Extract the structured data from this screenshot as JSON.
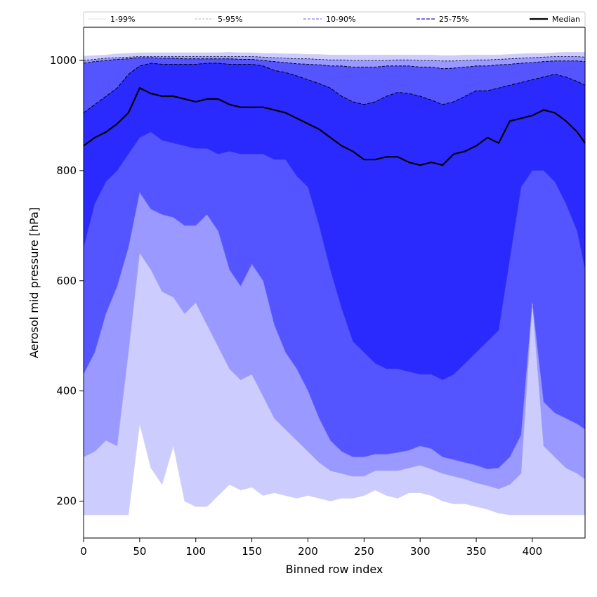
{
  "chart_data": {
    "type": "area",
    "title": "",
    "xlabel": "Binned row index",
    "ylabel": "Aerosol mid pressure [hPa]",
    "xlim": [
      0,
      447
    ],
    "ylim": [
      133,
      1060
    ],
    "xticks": [
      0,
      50,
      100,
      150,
      200,
      250,
      300,
      350,
      400
    ],
    "yticks": [
      200,
      400,
      600,
      800,
      1000
    ],
    "legend_position": "top",
    "colors": {
      "band_1_99": "#ccccff",
      "band_5_95": "#9999ff",
      "band_10_90": "#5555ff",
      "band_25_75": "#2a2aff",
      "median": "#000000",
      "line_1_99": "#d8d8e8",
      "line_5_95": "#b0b0dd",
      "line_10_90": "#8080ee",
      "line_25_75": "#4040dd"
    },
    "legend": [
      {
        "key": "p1_99",
        "label": "1-99%"
      },
      {
        "key": "p5_95",
        "label": "5-95%"
      },
      {
        "key": "p10_90",
        "label": "10-90%"
      },
      {
        "key": "p25_75",
        "label": "25-75%"
      },
      {
        "key": "median",
        "label": "Median"
      }
    ],
    "x": [
      0,
      10,
      20,
      30,
      40,
      50,
      60,
      70,
      80,
      90,
      100,
      110,
      120,
      130,
      140,
      150,
      160,
      170,
      180,
      190,
      200,
      210,
      220,
      230,
      240,
      250,
      260,
      270,
      280,
      290,
      300,
      310,
      320,
      330,
      340,
      350,
      360,
      370,
      380,
      390,
      400,
      410,
      420,
      430,
      440,
      447
    ],
    "series": [
      {
        "name": "1%",
        "values": [
          175,
          175,
          175,
          175,
          175,
          340,
          260,
          230,
          300,
          200,
          190,
          190,
          210,
          230,
          220,
          225,
          210,
          215,
          210,
          205,
          210,
          205,
          200,
          205,
          205,
          210,
          220,
          210,
          205,
          215,
          215,
          210,
          200,
          195,
          195,
          190,
          185,
          178,
          175,
          175,
          175,
          175,
          175,
          175,
          175,
          175
        ]
      },
      {
        "name": "5%",
        "values": [
          280,
          290,
          310,
          300,
          470,
          650,
          620,
          580,
          570,
          540,
          560,
          520,
          480,
          440,
          420,
          430,
          390,
          350,
          330,
          310,
          290,
          270,
          255,
          250,
          245,
          245,
          255,
          255,
          255,
          260,
          265,
          258,
          250,
          245,
          240,
          233,
          228,
          222,
          230,
          250,
          560,
          300,
          280,
          260,
          250,
          240
        ]
      },
      {
        "name": "10%",
        "values": [
          430,
          470,
          540,
          590,
          660,
          760,
          730,
          720,
          715,
          700,
          700,
          720,
          690,
          620,
          590,
          630,
          600,
          520,
          470,
          440,
          400,
          350,
          310,
          290,
          280,
          280,
          285,
          285,
          288,
          292,
          300,
          295,
          280,
          275,
          270,
          265,
          258,
          260,
          280,
          320,
          560,
          380,
          360,
          350,
          340,
          330
        ]
      },
      {
        "name": "25%",
        "values": [
          660,
          740,
          780,
          800,
          830,
          860,
          870,
          855,
          850,
          845,
          840,
          840,
          830,
          835,
          830,
          830,
          830,
          820,
          820,
          790,
          770,
          700,
          620,
          550,
          490,
          470,
          450,
          440,
          440,
          435,
          430,
          430,
          420,
          430,
          450,
          470,
          490,
          510,
          640,
          770,
          800,
          800,
          780,
          740,
          690,
          620
        ]
      },
      {
        "name": "Median",
        "values": [
          845,
          860,
          870,
          885,
          905,
          950,
          940,
          935,
          935,
          930,
          925,
          930,
          930,
          920,
          915,
          915,
          915,
          910,
          905,
          895,
          885,
          875,
          860,
          845,
          835,
          820,
          820,
          825,
          825,
          815,
          810,
          815,
          810,
          830,
          835,
          845,
          860,
          850,
          890,
          895,
          900,
          910,
          905,
          890,
          870,
          850
        ]
      },
      {
        "name": "75%",
        "values": [
          905,
          920,
          935,
          950,
          975,
          990,
          995,
          993,
          993,
          993,
          993,
          995,
          995,
          993,
          993,
          993,
          990,
          982,
          978,
          972,
          965,
          958,
          950,
          935,
          925,
          920,
          925,
          935,
          942,
          940,
          935,
          928,
          920,
          925,
          935,
          945,
          945,
          950,
          955,
          960,
          965,
          970,
          975,
          970,
          962,
          955
        ]
      },
      {
        "name": "90%",
        "values": [
          995,
          998,
          1000,
          1002,
          1003,
          1005,
          1005,
          1004,
          1004,
          1003,
          1003,
          1003,
          1003,
          1003,
          1002,
          1002,
          1000,
          998,
          996,
          994,
          993,
          992,
          990,
          990,
          988,
          988,
          988,
          990,
          990,
          990,
          988,
          988,
          985,
          986,
          988,
          990,
          990,
          992,
          993,
          995,
          996,
          998,
          999,
          999,
          999,
          998
        ]
      },
      {
        "name": "95%",
        "values": [
          1000,
          1002,
          1004,
          1005,
          1006,
          1007,
          1007,
          1007,
          1007,
          1007,
          1007,
          1007,
          1007,
          1007,
          1007,
          1007,
          1006,
          1005,
          1004,
          1003,
          1003,
          1002,
          1001,
          1001,
          1000,
          1000,
          1000,
          1000,
          1001,
          1001,
          1000,
          1000,
          999,
          999,
          1000,
          1001,
          1001,
          1002,
          1003,
          1004,
          1005,
          1006,
          1007,
          1007,
          1007,
          1006
        ]
      },
      {
        "name": "99%",
        "values": [
          1008,
          1009,
          1010,
          1012,
          1013,
          1014,
          1014,
          1014,
          1014,
          1014,
          1014,
          1014,
          1014,
          1015,
          1014,
          1014,
          1013,
          1013,
          1012,
          1012,
          1011,
          1011,
          1010,
          1010,
          1010,
          1010,
          1010,
          1010,
          1010,
          1010,
          1010,
          1010,
          1009,
          1009,
          1010,
          1010,
          1010,
          1010,
          1011,
          1012,
          1013,
          1013,
          1014,
          1015,
          1015,
          1015
        ]
      }
    ]
  }
}
